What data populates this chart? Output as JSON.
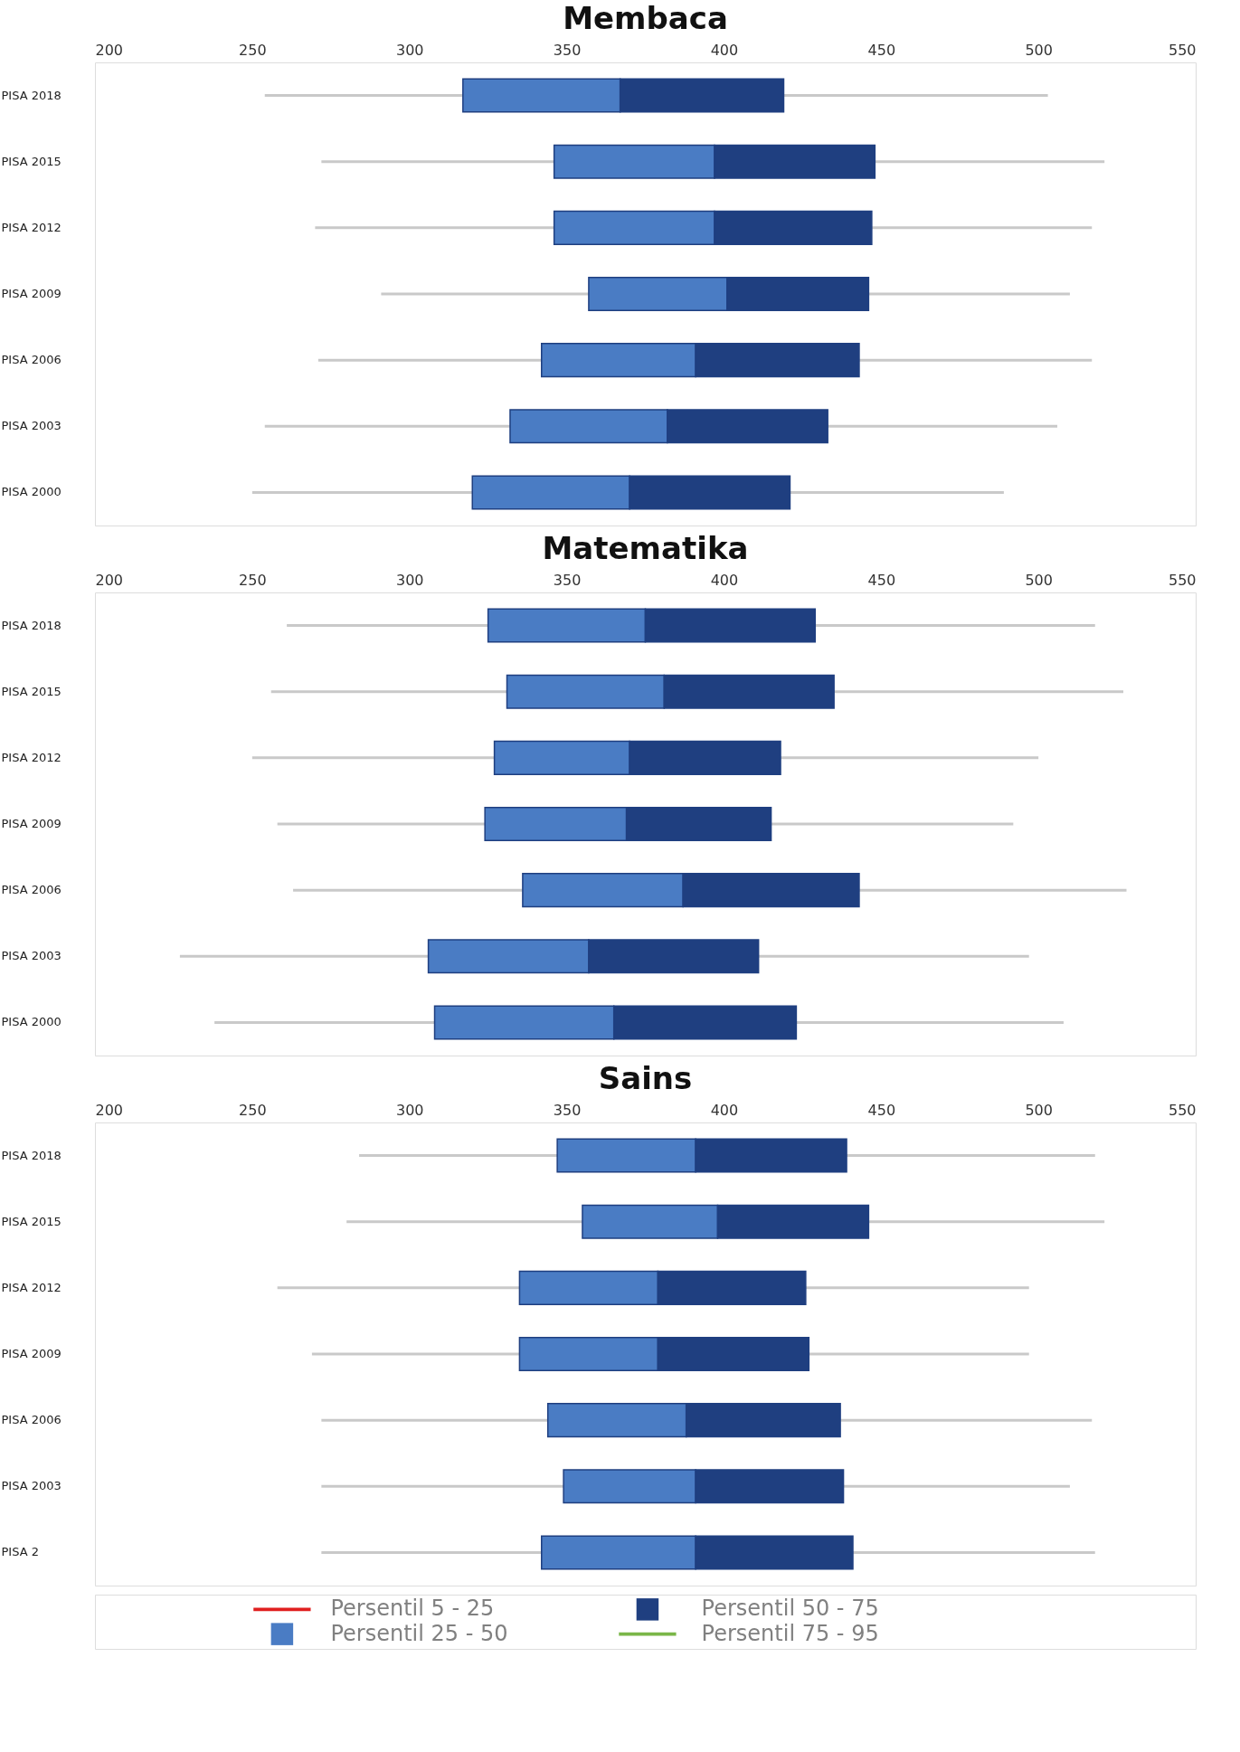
{
  "chart_data": [
    {
      "type": "box",
      "title": "Membaca",
      "categories": [
        "PISA 2018",
        "PISA 2015",
        "PISA 2012",
        "PISA 2009",
        "PISA 2006",
        "PISA 2003",
        "PISA 2000"
      ],
      "orientation": "horizontal",
      "xlim": [
        200,
        550
      ],
      "xticks": [
        200,
        250,
        300,
        350,
        400,
        450,
        500,
        550
      ],
      "boxes": [
        {
          "low": 254,
          "q1": 317,
          "median": 367,
          "q3": 419,
          "high": 503
        },
        {
          "low": 272,
          "q1": 346,
          "median": 397,
          "q3": 448,
          "high": 521
        },
        {
          "low": 270,
          "q1": 346,
          "median": 397,
          "q3": 447,
          "high": 517
        },
        {
          "low": 291,
          "q1": 357,
          "median": 401,
          "q3": 446,
          "high": 510
        },
        {
          "low": 271,
          "q1": 342,
          "median": 391,
          "q3": 443,
          "high": 517
        },
        {
          "low": 254,
          "q1": 332,
          "median": 382,
          "q3": 433,
          "high": 506
        },
        {
          "low": 250,
          "q1": 320,
          "median": 370,
          "q3": 421,
          "high": 489
        }
      ]
    },
    {
      "type": "box",
      "title": "Matematika",
      "categories": [
        "PISA 2018",
        "PISA 2015",
        "PISA 2012",
        "PISA 2009",
        "PISA 2006",
        "PISA 2003",
        "PISA 2000"
      ],
      "orientation": "horizontal",
      "xlim": [
        200,
        550
      ],
      "xticks": [
        200,
        250,
        300,
        350,
        400,
        450,
        500,
        550
      ],
      "boxes": [
        {
          "low": 261,
          "q1": 325,
          "median": 375,
          "q3": 429,
          "high": 518
        },
        {
          "low": 256,
          "q1": 331,
          "median": 381,
          "q3": 435,
          "high": 527
        },
        {
          "low": 250,
          "q1": 327,
          "median": 370,
          "q3": 418,
          "high": 500
        },
        {
          "low": 258,
          "q1": 324,
          "median": 369,
          "q3": 415,
          "high": 492
        },
        {
          "low": 263,
          "q1": 336,
          "median": 387,
          "q3": 443,
          "high": 528
        },
        {
          "low": 227,
          "q1": 306,
          "median": 357,
          "q3": 411,
          "high": 497
        },
        {
          "low": 238,
          "q1": 308,
          "median": 365,
          "q3": 423,
          "high": 508
        }
      ]
    },
    {
      "type": "box",
      "title": "Sains",
      "categories": [
        "PISA 2018",
        "PISA 2015",
        "PISA 2012",
        "PISA 2009",
        "PISA 2006",
        "PISA 2003",
        "PISA 2"
      ],
      "orientation": "horizontal",
      "xlim": [
        200,
        550
      ],
      "xticks": [
        200,
        250,
        300,
        350,
        400,
        450,
        500,
        550
      ],
      "boxes": [
        {
          "low": 284,
          "q1": 347,
          "median": 391,
          "q3": 439,
          "high": 518
        },
        {
          "low": 280,
          "q1": 355,
          "median": 398,
          "q3": 446,
          "high": 521
        },
        {
          "low": 258,
          "q1": 335,
          "median": 379,
          "q3": 426,
          "high": 497
        },
        {
          "low": 269,
          "q1": 335,
          "median": 379,
          "q3": 427,
          "high": 497
        },
        {
          "low": 272,
          "q1": 344,
          "median": 388,
          "q3": 437,
          "high": 517
        },
        {
          "low": 272,
          "q1": 349,
          "median": 391,
          "q3": 438,
          "high": 510
        },
        {
          "low": 272,
          "q1": 342,
          "median": 391,
          "q3": 441,
          "high": 518
        }
      ]
    },
    {
      "type": "other",
      "legend": "bottom",
      "series": [
        {
          "name": "Persentil 5 - 25",
          "type": "line",
          "color": "#e02020"
        },
        {
          "name": "Persentil 25 - 50",
          "type": "bar",
          "color": "#4a7cc4"
        },
        {
          "name": "Persentil 50 - 75",
          "type": "bar",
          "color": "#1f3f80"
        },
        {
          "name": "Persentil 75 - 95",
          "type": "line",
          "color": "#7ab648"
        }
      ]
    }
  ]
}
